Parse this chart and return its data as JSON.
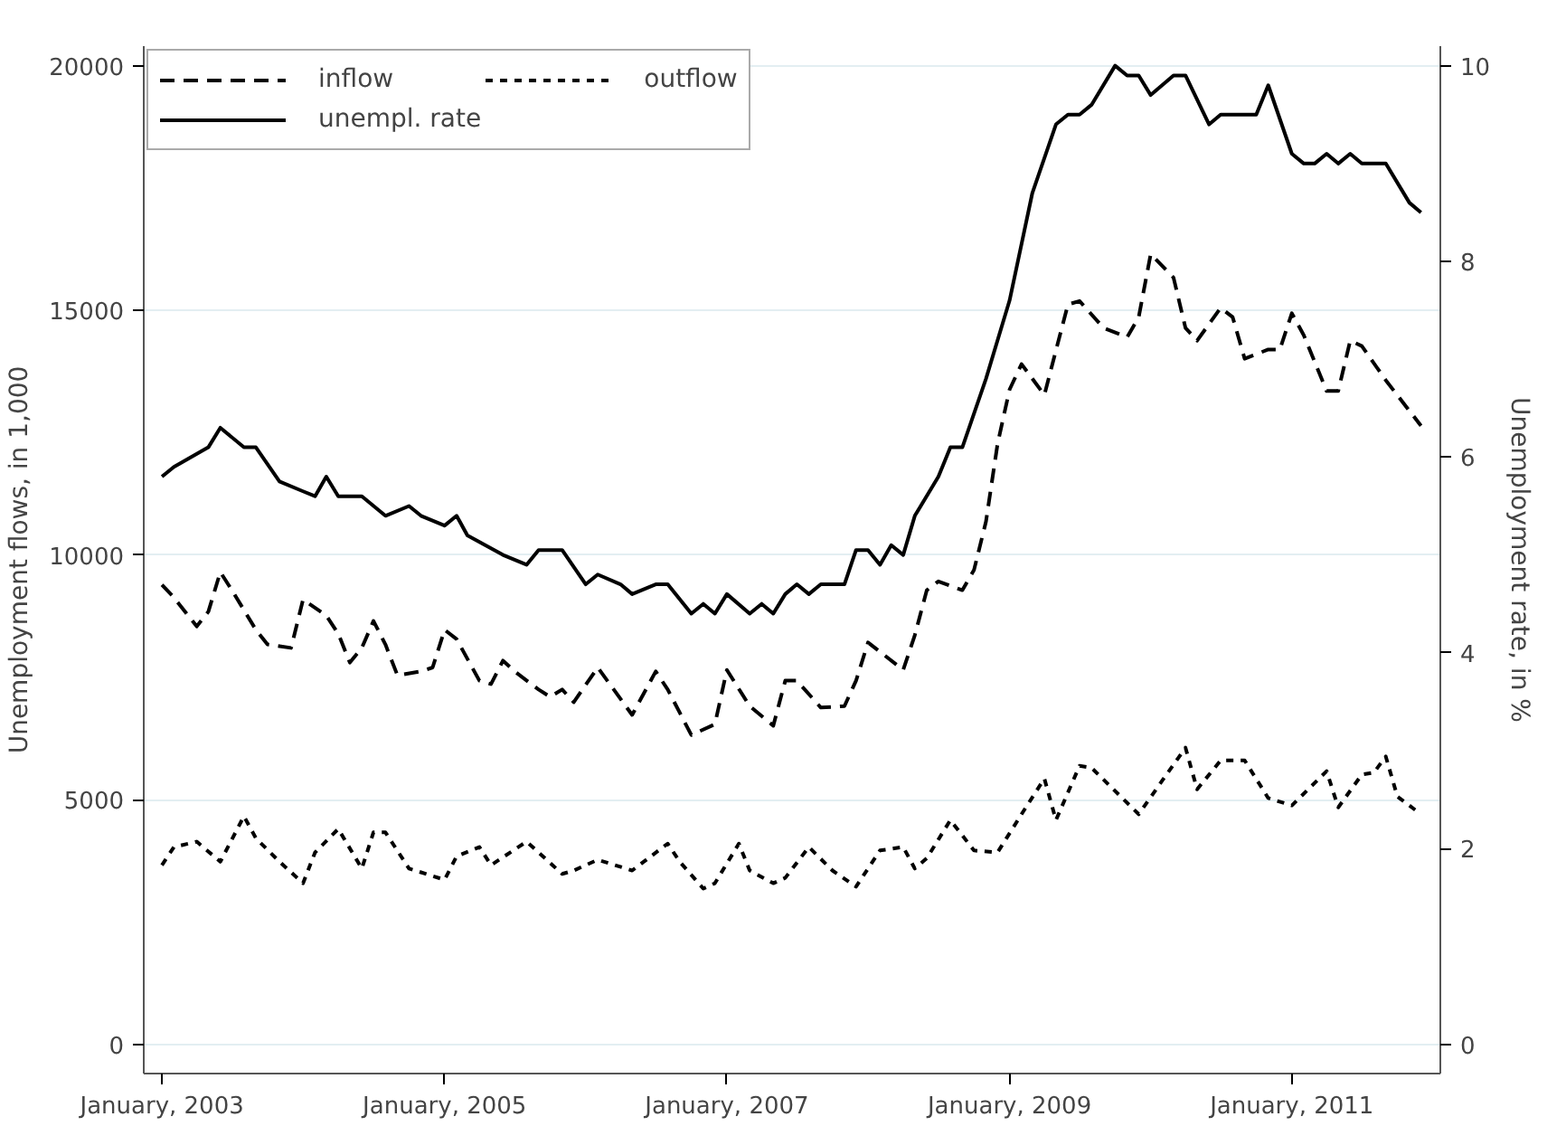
{
  "chart_data": {
    "type": "line",
    "ylabel": "Unemployment flows, in 1,000",
    "y2label": "Unemployment rate, in %",
    "xlim": [
      "2002-11-15",
      "2012-01-20"
    ],
    "xticks": [
      {
        "value": "2003-01",
        "label": "January, 2003"
      },
      {
        "value": "2005-01",
        "label": "January, 2005"
      },
      {
        "value": "2007-01",
        "label": "January, 2007"
      },
      {
        "value": "2009-01",
        "label": "January, 2009"
      },
      {
        "value": "2011-01",
        "label": "January, 2011"
      }
    ],
    "ylim": [
      -600,
      20400
    ],
    "yticks": [
      0,
      5000,
      10000,
      15000,
      20000
    ],
    "y2lim": [
      -0.3,
      10.2
    ],
    "y2ticks": [
      0,
      2,
      4,
      6,
      8,
      10
    ],
    "grid": "y",
    "legend": "top left",
    "series": [
      {
        "name": "inflow",
        "color": "#000000",
        "line_style": "dashed",
        "x": [
          "2003-01",
          "2003-02",
          "2003-04",
          "2003-05",
          "2003-06",
          "2003-07",
          "2003-09",
          "2003-10",
          "2003-12",
          "2004-01",
          "2004-03",
          "2004-04",
          "2004-05",
          "2004-06",
          "2004-07",
          "2004-08",
          "2004-09",
          "2004-11",
          "2004-12",
          "2005-01",
          "2005-02",
          "2005-04",
          "2005-05",
          "2005-06",
          "2005-07",
          "2005-09",
          "2005-10",
          "2005-11",
          "2005-12",
          "2006-02",
          "2006-05",
          "2006-07",
          "2006-08",
          "2006-10",
          "2006-12",
          "2007-01",
          "2007-03",
          "2007-05",
          "2007-06",
          "2007-07",
          "2007-09",
          "2007-11",
          "2007-12",
          "2008-01",
          "2008-02",
          "2008-04",
          "2008-05",
          "2008-06",
          "2008-07",
          "2008-09",
          "2008-10",
          "2008-11",
          "2008-12",
          "2009-01",
          "2009-02",
          "2009-04",
          "2009-06",
          "2009-07",
          "2009-09",
          "2009-11",
          "2009-12",
          "2010-01",
          "2010-03",
          "2010-04",
          "2010-05",
          "2010-07",
          "2010-08",
          "2010-09",
          "2010-11",
          "2010-12",
          "2011-01",
          "2011-02",
          "2011-04",
          "2011-05",
          "2011-06",
          "2011-07",
          "2011-09",
          "2011-12"
        ],
        "values": [
          9390,
          9130,
          8540,
          8840,
          9650,
          9280,
          8470,
          8170,
          8100,
          9090,
          8760,
          8390,
          7800,
          8100,
          8650,
          8170,
          7540,
          7620,
          7700,
          8470,
          8280,
          7430,
          7360,
          7840,
          7620,
          7250,
          7100,
          7250,
          6990,
          7700,
          6730,
          7620,
          7250,
          6320,
          6540,
          7650,
          6910,
          6510,
          7430,
          7430,
          6880,
          6910,
          7430,
          8210,
          8020,
          7650,
          8360,
          9280,
          9460,
          9280,
          9690,
          10680,
          12270,
          13380,
          13900,
          13270,
          15120,
          15190,
          14640,
          14450,
          14860,
          16150,
          15670,
          14640,
          14380,
          15050,
          14860,
          14010,
          14200,
          14200,
          14940,
          14490,
          13350,
          13350,
          14380,
          14270,
          13570,
          12640
        ]
      },
      {
        "name": "outflow",
        "color": "#000000",
        "line_style": "dotted",
        "x": [
          "2003-01",
          "2003-02",
          "2003-04",
          "2003-06",
          "2003-08",
          "2003-09",
          "2003-11",
          "2004-01",
          "2004-02",
          "2004-04",
          "2004-06",
          "2004-07",
          "2004-08",
          "2004-10",
          "2005-01",
          "2005-02",
          "2005-04",
          "2005-05",
          "2005-08",
          "2005-09",
          "2005-11",
          "2005-12",
          "2006-02",
          "2006-05",
          "2006-08",
          "2006-09",
          "2006-11",
          "2006-12",
          "2007-02",
          "2007-03",
          "2007-05",
          "2007-06",
          "2007-08",
          "2007-10",
          "2007-12",
          "2008-02",
          "2008-04",
          "2008-05",
          "2008-06",
          "2008-08",
          "2008-10",
          "2008-12",
          "2009-02",
          "2009-04",
          "2009-05",
          "2009-07",
          "2009-08",
          "2009-12",
          "2010-02",
          "2010-04",
          "2010-05",
          "2010-07",
          "2010-09",
          "2010-11",
          "2011-01",
          "2011-04",
          "2011-05",
          "2011-07",
          "2011-08",
          "2011-09",
          "2011-10",
          "2011-12"
        ],
        "values": [
          3660,
          4030,
          4140,
          3730,
          4660,
          4210,
          3730,
          3290,
          3920,
          4400,
          3590,
          4330,
          4330,
          3590,
          3360,
          3840,
          4030,
          3660,
          4140,
          3920,
          3480,
          3550,
          3770,
          3550,
          4100,
          3730,
          3180,
          3290,
          4100,
          3550,
          3290,
          3400,
          4030,
          3550,
          3220,
          3960,
          4030,
          3590,
          3800,
          4580,
          3960,
          3920,
          4700,
          5430,
          4580,
          5690,
          5650,
          4700,
          5400,
          6060,
          5210,
          5800,
          5800,
          5030,
          4880,
          5580,
          4840,
          5510,
          5550,
          5880,
          5060,
          4700
        ]
      },
      {
        "name": "unempl. rate",
        "color": "#000000",
        "line_style": "solid",
        "axis": "y2",
        "x": [
          "2003-01",
          "2003-02",
          "2003-05",
          "2003-06",
          "2003-08",
          "2003-09",
          "2003-11",
          "2004-01",
          "2004-02",
          "2004-03",
          "2004-04",
          "2004-06",
          "2004-08",
          "2004-10",
          "2004-11",
          "2005-01",
          "2005-02",
          "2005-03",
          "2005-06",
          "2005-08",
          "2005-09",
          "2005-11",
          "2006-01",
          "2006-02",
          "2006-04",
          "2006-05",
          "2006-07",
          "2006-08",
          "2006-10",
          "2006-11",
          "2006-12",
          "2007-01",
          "2007-03",
          "2007-04",
          "2007-05",
          "2007-06",
          "2007-07",
          "2007-08",
          "2007-09",
          "2007-11",
          "2007-12",
          "2008-01",
          "2008-02",
          "2008-03",
          "2008-04",
          "2008-05",
          "2008-07",
          "2008-08",
          "2008-09",
          "2008-11",
          "2009-01",
          "2009-03",
          "2009-05",
          "2009-06",
          "2009-07",
          "2009-08",
          "2009-10",
          "2009-11",
          "2009-12",
          "2010-01",
          "2010-03",
          "2010-04",
          "2010-06",
          "2010-07",
          "2010-10",
          "2010-11",
          "2011-01",
          "2011-02",
          "2011-03",
          "2011-04",
          "2011-05",
          "2011-06",
          "2011-07",
          "2011-09",
          "2011-11",
          "2011-12"
        ],
        "values": [
          5.8,
          5.9,
          6.1,
          6.3,
          6.1,
          6.1,
          5.75,
          5.65,
          5.6,
          5.8,
          5.6,
          5.6,
          5.4,
          5.5,
          5.4,
          5.3,
          5.4,
          5.2,
          5.0,
          4.9,
          5.05,
          5.05,
          4.7,
          4.8,
          4.7,
          4.6,
          4.7,
          4.7,
          4.4,
          4.5,
          4.4,
          4.6,
          4.4,
          4.5,
          4.4,
          4.6,
          4.7,
          4.6,
          4.7,
          4.7,
          5.05,
          5.05,
          4.9,
          5.1,
          5.0,
          5.4,
          5.8,
          6.1,
          6.1,
          6.8,
          7.6,
          8.7,
          9.4,
          9.5,
          9.5,
          9.6,
          10.0,
          9.9,
          9.9,
          9.7,
          9.9,
          9.9,
          9.4,
          9.5,
          9.5,
          9.8,
          9.1,
          9.0,
          9.0,
          9.1,
          9.0,
          9.1,
          9.0,
          9.0,
          8.6,
          8.5
        ]
      }
    ]
  }
}
